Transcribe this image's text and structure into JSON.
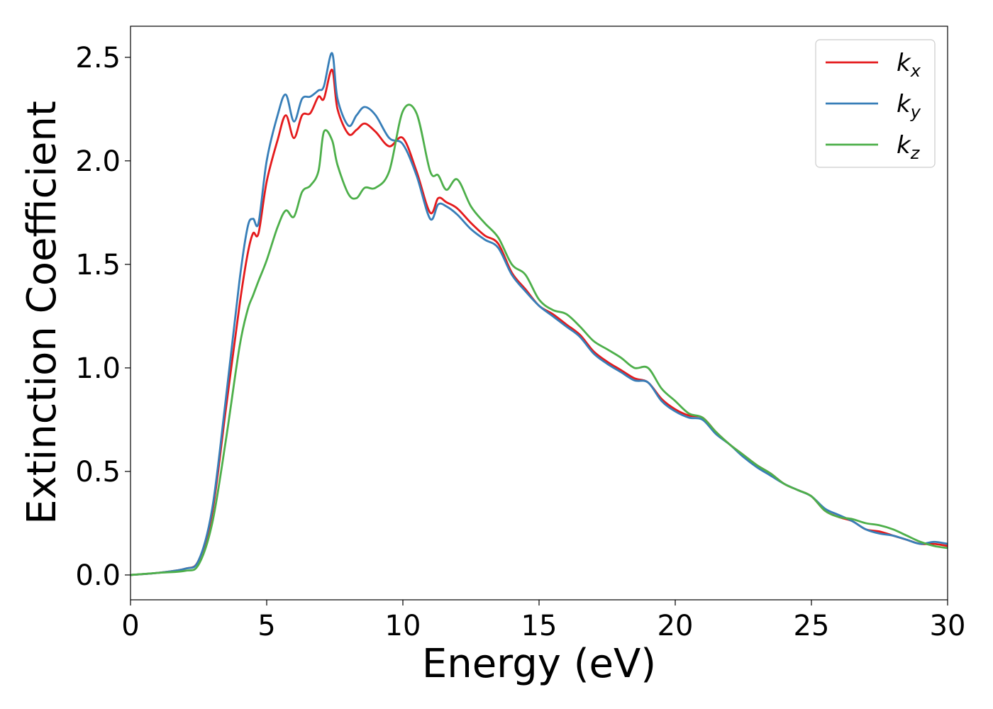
{
  "chart_data": {
    "type": "line",
    "title": "",
    "xlabel": "Energy (eV)",
    "ylabel": "Extinction Coefficient",
    "xlim": [
      0,
      30
    ],
    "ylim": [
      -0.12,
      2.65
    ],
    "xticks": [
      0,
      5,
      10,
      15,
      20,
      25,
      30
    ],
    "xtick_labels": [
      "0",
      "5",
      "10",
      "15",
      "20",
      "25",
      "30"
    ],
    "yticks": [
      0.0,
      0.5,
      1.0,
      1.5,
      2.0,
      2.5
    ],
    "ytick_labels": [
      "0.0",
      "0.5",
      "1.0",
      "1.5",
      "2.0",
      "2.5"
    ],
    "grid": false,
    "legend_position": "top-right",
    "series": [
      {
        "name": "k",
        "subscript": "x",
        "color": "#e41a1c",
        "x": [
          0,
          1,
          2,
          2.5,
          3,
          3.5,
          4,
          4.3,
          4.5,
          4.7,
          5,
          5.4,
          5.7,
          6,
          6.3,
          6.6,
          6.9,
          7.1,
          7.4,
          7.6,
          8,
          8.3,
          8.6,
          9,
          9.5,
          10,
          10.5,
          11,
          11.3,
          11.6,
          12,
          12.5,
          13,
          13.5,
          14,
          14.5,
          15,
          15.5,
          16,
          16.5,
          17,
          17.5,
          18,
          18.5,
          19,
          19.5,
          20,
          20.5,
          21,
          21.5,
          22,
          22.5,
          23,
          23.5,
          24,
          24.5,
          25,
          25.5,
          26,
          26.5,
          27,
          27.5,
          28,
          28.5,
          29,
          29.5,
          30
        ],
        "y": [
          0.0,
          0.01,
          0.03,
          0.07,
          0.3,
          0.8,
          1.3,
          1.55,
          1.65,
          1.65,
          1.9,
          2.1,
          2.22,
          2.11,
          2.22,
          2.23,
          2.31,
          2.3,
          2.44,
          2.25,
          2.13,
          2.15,
          2.18,
          2.14,
          2.07,
          2.11,
          1.95,
          1.75,
          1.82,
          1.8,
          1.77,
          1.7,
          1.64,
          1.6,
          1.46,
          1.38,
          1.3,
          1.26,
          1.21,
          1.16,
          1.08,
          1.03,
          0.99,
          0.95,
          0.93,
          0.85,
          0.8,
          0.77,
          0.76,
          0.69,
          0.63,
          0.58,
          0.53,
          0.49,
          0.44,
          0.41,
          0.38,
          0.31,
          0.28,
          0.26,
          0.22,
          0.21,
          0.19,
          0.17,
          0.15,
          0.15,
          0.14
        ]
      },
      {
        "name": "k",
        "subscript": "y",
        "color": "#377eb8",
        "x": [
          0,
          1,
          2,
          2.5,
          3,
          3.5,
          4,
          4.3,
          4.5,
          4.7,
          5,
          5.4,
          5.7,
          6,
          6.3,
          6.6,
          6.9,
          7.1,
          7.4,
          7.6,
          8,
          8.3,
          8.6,
          9,
          9.5,
          10,
          10.5,
          11,
          11.3,
          11.6,
          12,
          12.5,
          13,
          13.5,
          14,
          14.5,
          15,
          15.5,
          16,
          16.5,
          17,
          17.5,
          18,
          18.5,
          19,
          19.5,
          20,
          20.5,
          21,
          21.5,
          22,
          22.5,
          23,
          23.5,
          24,
          24.5,
          25,
          25.5,
          26,
          26.5,
          27,
          27.5,
          28,
          28.5,
          29,
          29.5,
          30
        ],
        "y": [
          0.0,
          0.01,
          0.03,
          0.07,
          0.32,
          0.85,
          1.42,
          1.68,
          1.72,
          1.7,
          2.0,
          2.22,
          2.32,
          2.19,
          2.3,
          2.31,
          2.34,
          2.36,
          2.52,
          2.3,
          2.17,
          2.22,
          2.26,
          2.22,
          2.11,
          2.08,
          1.93,
          1.72,
          1.79,
          1.78,
          1.74,
          1.67,
          1.62,
          1.58,
          1.45,
          1.37,
          1.3,
          1.25,
          1.2,
          1.15,
          1.07,
          1.02,
          0.98,
          0.94,
          0.93,
          0.84,
          0.79,
          0.76,
          0.75,
          0.68,
          0.63,
          0.57,
          0.52,
          0.48,
          0.44,
          0.41,
          0.38,
          0.32,
          0.29,
          0.26,
          0.22,
          0.2,
          0.19,
          0.17,
          0.15,
          0.16,
          0.15
        ]
      },
      {
        "name": "k",
        "subscript": "z",
        "color": "#4daf4a",
        "x": [
          0,
          1,
          2,
          2.5,
          3,
          3.5,
          4,
          4.3,
          4.5,
          4.7,
          5,
          5.4,
          5.7,
          6,
          6.3,
          6.6,
          6.9,
          7.1,
          7.4,
          7.6,
          8,
          8.3,
          8.6,
          9,
          9.5,
          10,
          10.5,
          11,
          11.3,
          11.6,
          12,
          12.5,
          13,
          13.5,
          14,
          14.5,
          15,
          15.5,
          16,
          16.5,
          17,
          17.5,
          18,
          18.5,
          19,
          19.5,
          20,
          20.5,
          21,
          21.5,
          22,
          22.5,
          23,
          23.5,
          24,
          24.5,
          25,
          25.5,
          26,
          26.5,
          27,
          27.5,
          28,
          28.5,
          29,
          29.5,
          30
        ],
        "y": [
          0.0,
          0.01,
          0.02,
          0.05,
          0.25,
          0.65,
          1.1,
          1.28,
          1.35,
          1.42,
          1.52,
          1.68,
          1.76,
          1.73,
          1.85,
          1.88,
          1.95,
          2.14,
          2.1,
          1.98,
          1.84,
          1.82,
          1.87,
          1.87,
          1.95,
          2.24,
          2.23,
          1.95,
          1.93,
          1.86,
          1.91,
          1.78,
          1.7,
          1.63,
          1.5,
          1.45,
          1.33,
          1.28,
          1.26,
          1.2,
          1.13,
          1.09,
          1.05,
          1.0,
          1.0,
          0.9,
          0.84,
          0.78,
          0.76,
          0.69,
          0.63,
          0.58,
          0.53,
          0.49,
          0.44,
          0.41,
          0.38,
          0.31,
          0.28,
          0.27,
          0.25,
          0.24,
          0.22,
          0.19,
          0.16,
          0.14,
          0.13
        ]
      }
    ]
  }
}
